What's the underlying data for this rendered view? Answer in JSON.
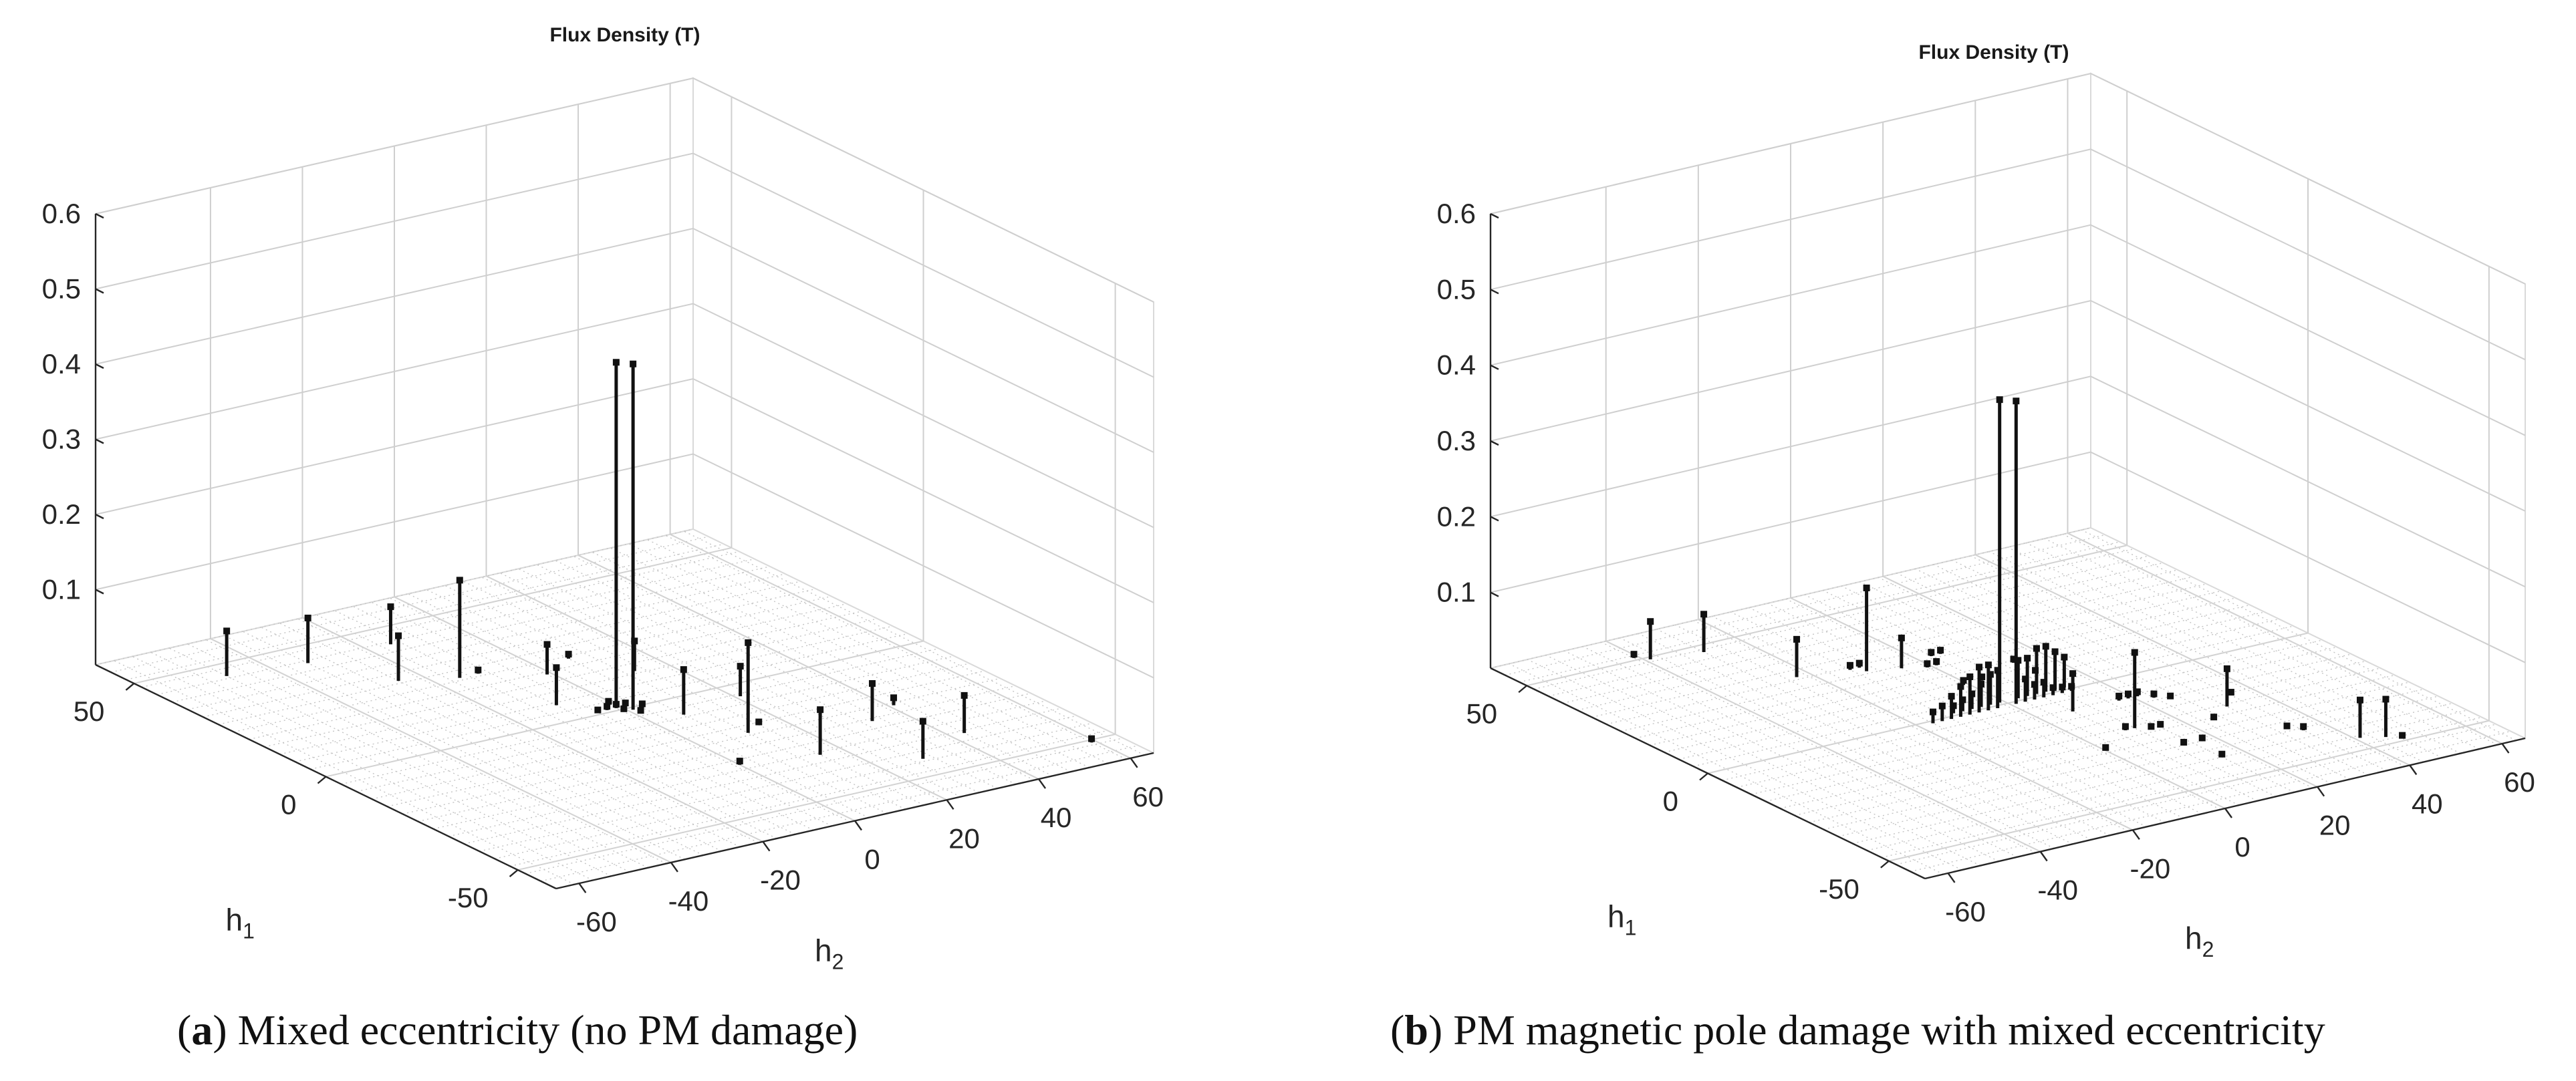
{
  "chart_data": [
    {
      "type": "stem3d",
      "title": "Flux Density (T)",
      "xlabel": "h",
      "xlabel_sub": "1",
      "ylabel": "h",
      "ylabel_sub": "2",
      "zlim": [
        0,
        0.6
      ],
      "xlim": [
        -60,
        60
      ],
      "ylim": [
        -65,
        65
      ],
      "z_ticks": [
        "0.1",
        "0.2",
        "0.3",
        "0.4",
        "0.5",
        "0.6"
      ],
      "x_ticks": [
        "50",
        "0",
        "-50"
      ],
      "y_ticks": [
        "-60",
        "-40",
        "-20",
        "0",
        "20",
        "40",
        "60"
      ],
      "grid": true,
      "stems": [
        {
          "h1": 1,
          "h2": -1,
          "z": 0.46
        },
        {
          "h1": -1,
          "h2": 1,
          "z": 0.46
        },
        {
          "h1": 1,
          "h2": -1,
          "z": 0.005
        },
        {
          "h1": 1,
          "h2": 1,
          "z": 0.004
        },
        {
          "h1": -1,
          "h2": -1,
          "z": 0.004
        },
        {
          "h1": -1,
          "h2": 3,
          "z": 0.005
        },
        {
          "h1": 1,
          "h2": -3,
          "z": 0.005
        },
        {
          "h1": 3,
          "h2": -1,
          "z": 0.004
        },
        {
          "h1": -3,
          "h2": 1,
          "z": 0.004
        },
        {
          "h1": 1,
          "h2": -5,
          "z": 0.003
        },
        {
          "h1": 45,
          "h2": -49,
          "z": 0.06
        },
        {
          "h1": 43,
          "h2": -33,
          "z": 0.06
        },
        {
          "h1": 43,
          "h2": -15,
          "z": 0.05
        },
        {
          "h1": 29,
          "h2": -25,
          "z": 0.06
        },
        {
          "h1": 25,
          "h2": -15,
          "z": 0.13
        },
        {
          "h1": 25,
          "h2": -11,
          "z": 0.005
        },
        {
          "h1": 23,
          "h2": 7,
          "z": 0.006
        },
        {
          "h1": 19,
          "h2": -1,
          "z": 0.04
        },
        {
          "h1": 7,
          "h2": -9,
          "z": 0.05
        },
        {
          "h1": 13,
          "h2": 13,
          "z": 0.04
        },
        {
          "h1": -5,
          "h2": 21,
          "z": 0.04
        },
        {
          "h1": -7,
          "h2": 7,
          "z": 0.06
        },
        {
          "h1": -19,
          "h2": 11,
          "z": 0.12
        },
        {
          "h1": -21,
          "h2": 41,
          "z": 0.01
        },
        {
          "h1": -17,
          "h2": 15,
          "z": 0.004
        },
        {
          "h1": -25,
          "h2": 33,
          "z": 0.05
        },
        {
          "h1": -37,
          "h2": 43,
          "z": 0.05
        },
        {
          "h1": -43,
          "h2": 29,
          "z": 0.05
        },
        {
          "h1": -33,
          "h2": 15,
          "z": 0.06
        },
        {
          "h1": -51,
          "h2": 59,
          "z": 0.005
        },
        {
          "h1": -30,
          "h2": 0,
          "z": 0.005
        }
      ]
    },
    {
      "type": "stem3d",
      "title": "Flux Density (T)",
      "xlabel": "h",
      "xlabel_sub": "1",
      "ylabel": "h",
      "ylabel_sub": "2",
      "zlim": [
        0,
        0.6
      ],
      "xlim": [
        -60,
        60
      ],
      "ylim": [
        -65,
        65
      ],
      "z_ticks": [
        "0.1",
        "0.2",
        "0.3",
        "0.4",
        "0.5",
        "0.6"
      ],
      "x_ticks": [
        "50",
        "0",
        "-50"
      ],
      "y_ticks": [
        "-60",
        "-40",
        "-20",
        "0",
        "20",
        "40",
        "60"
      ],
      "grid": true,
      "stems": [
        {
          "h1": 1,
          "h2": -1,
          "z": 0.4
        },
        {
          "h1": -1,
          "h2": 1,
          "z": 0.4
        },
        {
          "h1": 1,
          "h2": -3,
          "z": 0.04
        },
        {
          "h1": 1,
          "h2": -5,
          "z": 0.03
        },
        {
          "h1": 1,
          "h2": -7,
          "z": 0.02
        },
        {
          "h1": 1,
          "h2": -9,
          "z": 0.015
        },
        {
          "h1": 1,
          "h2": -11,
          "z": 0.01
        },
        {
          "h1": 1,
          "h2": 3,
          "z": 0.05
        },
        {
          "h1": 1,
          "h2": 5,
          "z": 0.05
        },
        {
          "h1": 1,
          "h2": 7,
          "z": 0.06
        },
        {
          "h1": 1,
          "h2": 9,
          "z": 0.06
        },
        {
          "h1": 1,
          "h2": 11,
          "z": 0.05
        },
        {
          "h1": 1,
          "h2": 13,
          "z": 0.04
        },
        {
          "h1": -1,
          "h2": -3,
          "z": 0.05
        },
        {
          "h1": -1,
          "h2": -5,
          "z": 0.06
        },
        {
          "h1": -1,
          "h2": -7,
          "z": 0.06
        },
        {
          "h1": -1,
          "h2": -9,
          "z": 0.05
        },
        {
          "h1": -1,
          "h2": -11,
          "z": 0.04
        },
        {
          "h1": -1,
          "h2": -13,
          "z": 0.03
        },
        {
          "h1": -1,
          "h2": -15,
          "z": 0.02
        },
        {
          "h1": -1,
          "h2": -17,
          "z": 0.015
        },
        {
          "h1": -1,
          "h2": 3,
          "z": 0.03
        },
        {
          "h1": -1,
          "h2": 5,
          "z": 0.02
        },
        {
          "h1": -1,
          "h2": 7,
          "z": 0.02
        },
        {
          "h1": -1,
          "h2": 9,
          "z": 0.01
        },
        {
          "h1": -1,
          "h2": 11,
          "z": 0.008
        },
        {
          "h1": -1,
          "h2": 13,
          "z": 0.006
        },
        {
          "h1": 49,
          "h2": -39,
          "z": 0.05
        },
        {
          "h1": 51,
          "h2": -41,
          "z": 0.005
        },
        {
          "h1": 47,
          "h2": -29,
          "z": 0.05
        },
        {
          "h1": 29,
          "h2": -23,
          "z": 0.05
        },
        {
          "h1": 25,
          "h2": -11,
          "z": 0.11
        },
        {
          "h1": 27,
          "h2": -13,
          "z": 0.006
        },
        {
          "h1": 27,
          "h2": -11,
          "z": 0.006
        },
        {
          "h1": 23,
          "h2": -5,
          "z": 0.04
        },
        {
          "h1": 21,
          "h2": -1,
          "z": 0.005
        },
        {
          "h1": 21,
          "h2": 1,
          "z": 0.005
        },
        {
          "h1": 25,
          "h2": 3,
          "z": 0.005
        },
        {
          "h1": 25,
          "h2": 5,
          "z": 0.005
        },
        {
          "h1": 11,
          "h2": -1,
          "z": 0.006
        },
        {
          "h1": 11,
          "h2": 3,
          "z": 0.005
        },
        {
          "h1": 9,
          "h2": 13,
          "z": 0.004
        },
        {
          "h1": 15,
          "h2": 13,
          "z": 0.005
        },
        {
          "h1": -9,
          "h2": 7,
          "z": 0.05
        },
        {
          "h1": -21,
          "h2": 9,
          "z": 0.005
        },
        {
          "h1": -21,
          "h2": 11,
          "z": 0.1
        },
        {
          "h1": -23,
          "h2": 13,
          "z": 0.004
        },
        {
          "h1": -23,
          "h2": 15,
          "z": 0.004
        },
        {
          "h1": -9,
          "h2": 17,
          "z": 0.006
        },
        {
          "h1": -9,
          "h2": 19,
          "z": 0.006
        },
        {
          "h1": -9,
          "h2": 21,
          "z": 0.006
        },
        {
          "h1": -11,
          "h2": 23,
          "z": 0.005
        },
        {
          "h1": -13,
          "h2": 25,
          "z": 0.004
        },
        {
          "h1": -25,
          "h2": 25,
          "z": 0.004
        },
        {
          "h1": -21,
          "h2": 31,
          "z": 0.05
        },
        {
          "h1": -17,
          "h2": 35,
          "z": 0.004
        },
        {
          "h1": -35,
          "h2": 33,
          "z": 0.004
        },
        {
          "h1": -37,
          "h2": 35,
          "z": 0.005
        },
        {
          "h1": -47,
          "h2": 45,
          "z": 0.05
        },
        {
          "h1": -45,
          "h2": 41,
          "z": 0.05
        },
        {
          "h1": -49,
          "h2": 47,
          "z": 0.004
        },
        {
          "h1": -40,
          "h2": 15,
          "z": 0.004
        },
        {
          "h1": -32,
          "h2": 13,
          "z": 0.004
        },
        {
          "h1": -32,
          "h2": 17,
          "z": 0.004
        },
        {
          "h1": -27,
          "h2": 0,
          "z": 0.004
        }
      ]
    }
  ],
  "captions": {
    "a": {
      "letter": "a",
      "text": " Mixed eccentricity (no PM damage)"
    },
    "b": {
      "letter": "b",
      "text": " PM magnetic pole damage with mixed eccentricity"
    }
  }
}
